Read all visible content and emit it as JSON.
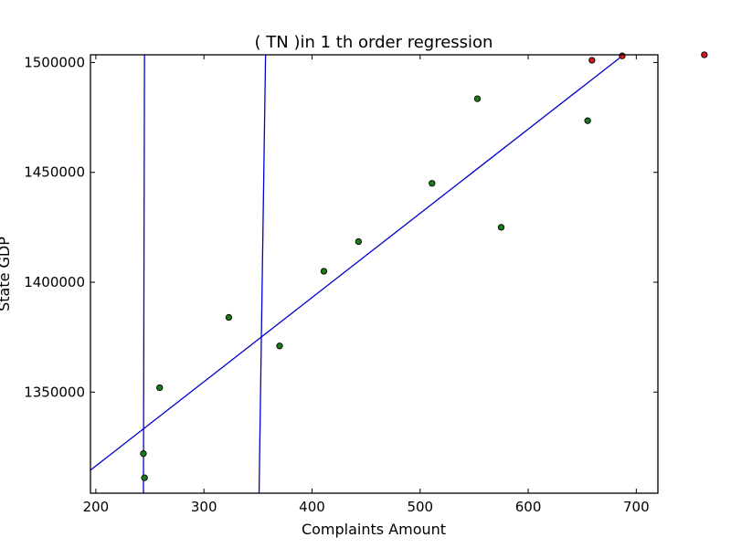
{
  "chart_data": {
    "type": "scatter",
    "title": "(  TN  )in 1 th order regression",
    "xlabel": "Complaints Amount",
    "ylabel": "State GDP",
    "xlim": [
      195,
      720
    ],
    "ylim": [
      1304000,
      1503500
    ],
    "xticks": [
      200,
      300,
      400,
      500,
      600,
      700
    ],
    "yticks": [
      1350000,
      1400000,
      1450000,
      1500000
    ],
    "xtick_labels": [
      "200",
      "300",
      "400",
      "500",
      "600",
      "700"
    ],
    "ytick_labels": [
      "1350000",
      "1400000",
      "1450000",
      "1500000"
    ],
    "grid": false,
    "points": [
      {
        "x": 244,
        "y": 1322000,
        "color": "#1a7a1a"
      },
      {
        "x": 245,
        "y": 1311000,
        "color": "#1a7a1a"
      },
      {
        "x": 259,
        "y": 1352000,
        "color": "#1a7a1a"
      },
      {
        "x": 323,
        "y": 1384000,
        "color": "#1a7a1a"
      },
      {
        "x": 370,
        "y": 1371000,
        "color": "#1a7a1a"
      },
      {
        "x": 411,
        "y": 1405000,
        "color": "#1a7a1a"
      },
      {
        "x": 443,
        "y": 1418500,
        "color": "#1a7a1a"
      },
      {
        "x": 511,
        "y": 1445000,
        "color": "#1a7a1a"
      },
      {
        "x": 553,
        "y": 1483500,
        "color": "#1a7a1a"
      },
      {
        "x": 575,
        "y": 1425000,
        "color": "#1a7a1a"
      },
      {
        "x": 655,
        "y": 1473500,
        "color": "#1a7a1a"
      },
      {
        "x": 659,
        "y": 1501000,
        "color": "#cc1a1a"
      },
      {
        "x": 687,
        "y": 1503000,
        "color": "#cc1a1a"
      },
      {
        "x": 763,
        "y": 1503500,
        "color": "#cc1a1a"
      }
    ],
    "lines": [
      {
        "color": "#0000cc",
        "points": [
          [
            195,
            1314500
          ],
          [
            687,
            1503000
          ]
        ]
      },
      {
        "color": "#0000cc",
        "points": [
          [
            244,
            1304000
          ],
          [
            245,
            1503500
          ]
        ]
      },
      {
        "color": "#0000cc",
        "points": [
          [
            351,
            1304000
          ],
          [
            357,
            1503500
          ]
        ]
      }
    ]
  }
}
